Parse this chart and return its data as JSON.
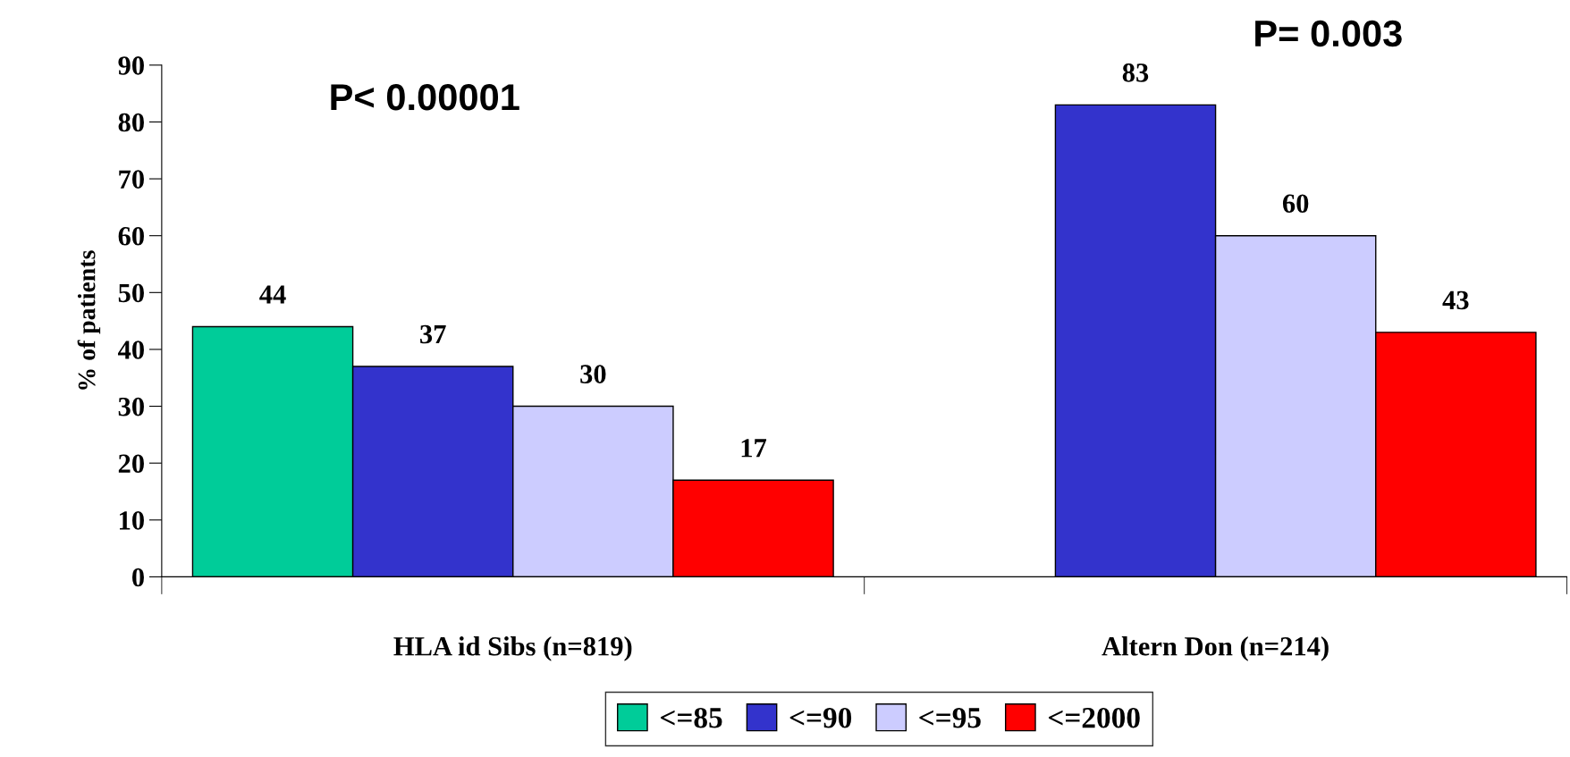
{
  "chart_data": {
    "type": "bar",
    "ylabel": "% of patients",
    "categories": [
      "HLA id Sibs (n=819)",
      "Altern Don (n=214)"
    ],
    "series": [
      {
        "name": "<=85",
        "color": "#00cc99",
        "values": [
          44,
          null
        ]
      },
      {
        "name": "<=90",
        "color": "#3333cc",
        "values": [
          37,
          83
        ]
      },
      {
        "name": "<=95",
        "color": "#ccccff",
        "values": [
          30,
          60
        ]
      },
      {
        "name": "<=2000",
        "color": "#ff0000",
        "values": [
          17,
          43
        ]
      }
    ],
    "ylim": [
      0,
      90
    ],
    "yticks": [
      0,
      10,
      20,
      30,
      40,
      50,
      60,
      70,
      80,
      90
    ],
    "data_labels": true,
    "grid": false,
    "legend": "bottom",
    "annotations": [
      "P< 0.00001",
      "P= 0.003"
    ]
  }
}
